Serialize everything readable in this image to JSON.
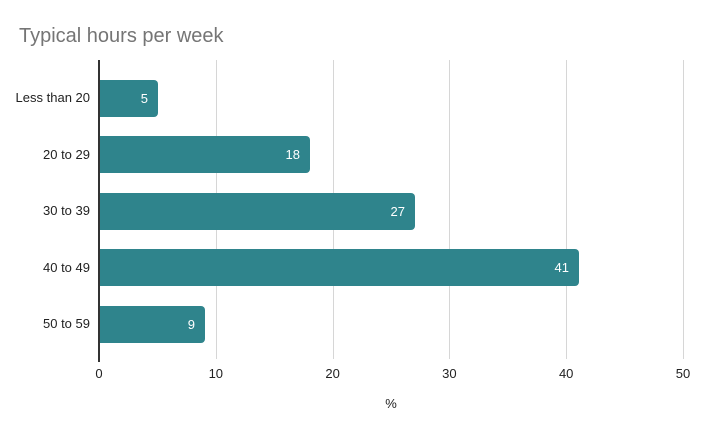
{
  "title": "Typical hours per week",
  "chart_data": {
    "type": "bar",
    "orientation": "horizontal",
    "title": "Typical hours per week",
    "categories": [
      "Less than 20",
      "20 to 29",
      "30 to 39",
      "40 to 49",
      "50 to 59"
    ],
    "values": [
      5,
      18,
      27,
      41,
      9
    ],
    "value_labels": [
      "5",
      "18",
      "27",
      "41",
      "9"
    ],
    "xlabel": "%",
    "ylabel": "",
    "xlim": [
      0,
      50
    ],
    "x_ticks": [
      "0",
      "10",
      "20",
      "30",
      "40",
      "50"
    ],
    "grid": "vertical",
    "legend": "none"
  },
  "colors": {
    "bar": "#2f848c",
    "bar_value_label": "#ffffff",
    "title_text": "#757575",
    "axis_baseline": "#333333",
    "gridline": "#d6d6d6",
    "tick_label": "#222222",
    "background": "#ffffff"
  }
}
